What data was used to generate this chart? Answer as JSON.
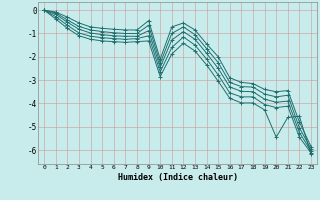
{
  "xlabel": "Humidex (Indice chaleur)",
  "bg_color": "#c8ecec",
  "grid_color": "#b0c8c8",
  "line_color": "#1e6e6e",
  "xlim": [
    -0.5,
    23.5
  ],
  "ylim": [
    -6.6,
    0.35
  ],
  "xticks": [
    0,
    1,
    2,
    3,
    4,
    5,
    6,
    7,
    8,
    9,
    10,
    11,
    12,
    13,
    14,
    15,
    16,
    17,
    18,
    19,
    20,
    21,
    22,
    23
  ],
  "yticks": [
    0,
    -1,
    -2,
    -3,
    -4,
    -5,
    -6
  ],
  "lines": [
    [
      0.0,
      -0.08,
      -0.3,
      -0.55,
      -0.72,
      -0.78,
      -0.82,
      -0.85,
      -0.85,
      -0.45,
      -2.1,
      -0.72,
      -0.55,
      -0.85,
      -1.45,
      -2.0,
      -2.9,
      -3.1,
      -3.15,
      -3.4,
      -3.5,
      -3.45,
      -4.8,
      -5.85
    ],
    [
      0.0,
      -0.12,
      -0.42,
      -0.7,
      -0.85,
      -0.92,
      -0.97,
      -1.0,
      -1.0,
      -0.65,
      -2.28,
      -1.0,
      -0.72,
      -1.05,
      -1.65,
      -2.25,
      -3.1,
      -3.28,
      -3.3,
      -3.6,
      -3.72,
      -3.65,
      -5.05,
      -5.95
    ],
    [
      0.0,
      -0.18,
      -0.52,
      -0.82,
      -0.98,
      -1.05,
      -1.1,
      -1.12,
      -1.12,
      -0.88,
      -2.45,
      -1.28,
      -0.92,
      -1.25,
      -1.85,
      -2.5,
      -3.3,
      -3.48,
      -3.5,
      -3.82,
      -3.95,
      -3.9,
      -5.25,
      -6.05
    ],
    [
      0.0,
      -0.28,
      -0.65,
      -0.98,
      -1.12,
      -1.18,
      -1.22,
      -1.25,
      -1.22,
      -1.1,
      -2.65,
      -1.6,
      -1.15,
      -1.5,
      -2.1,
      -2.78,
      -3.55,
      -3.72,
      -3.72,
      -4.05,
      -4.18,
      -4.12,
      -5.45,
      -6.12
    ],
    [
      0.0,
      -0.38,
      -0.78,
      -1.1,
      -1.25,
      -1.32,
      -1.35,
      -1.38,
      -1.35,
      -1.32,
      -2.85,
      -1.88,
      -1.42,
      -1.75,
      -2.35,
      -3.05,
      -3.78,
      -3.98,
      -3.98,
      -4.28,
      -5.45,
      -4.6,
      -4.55,
      -6.18
    ]
  ]
}
